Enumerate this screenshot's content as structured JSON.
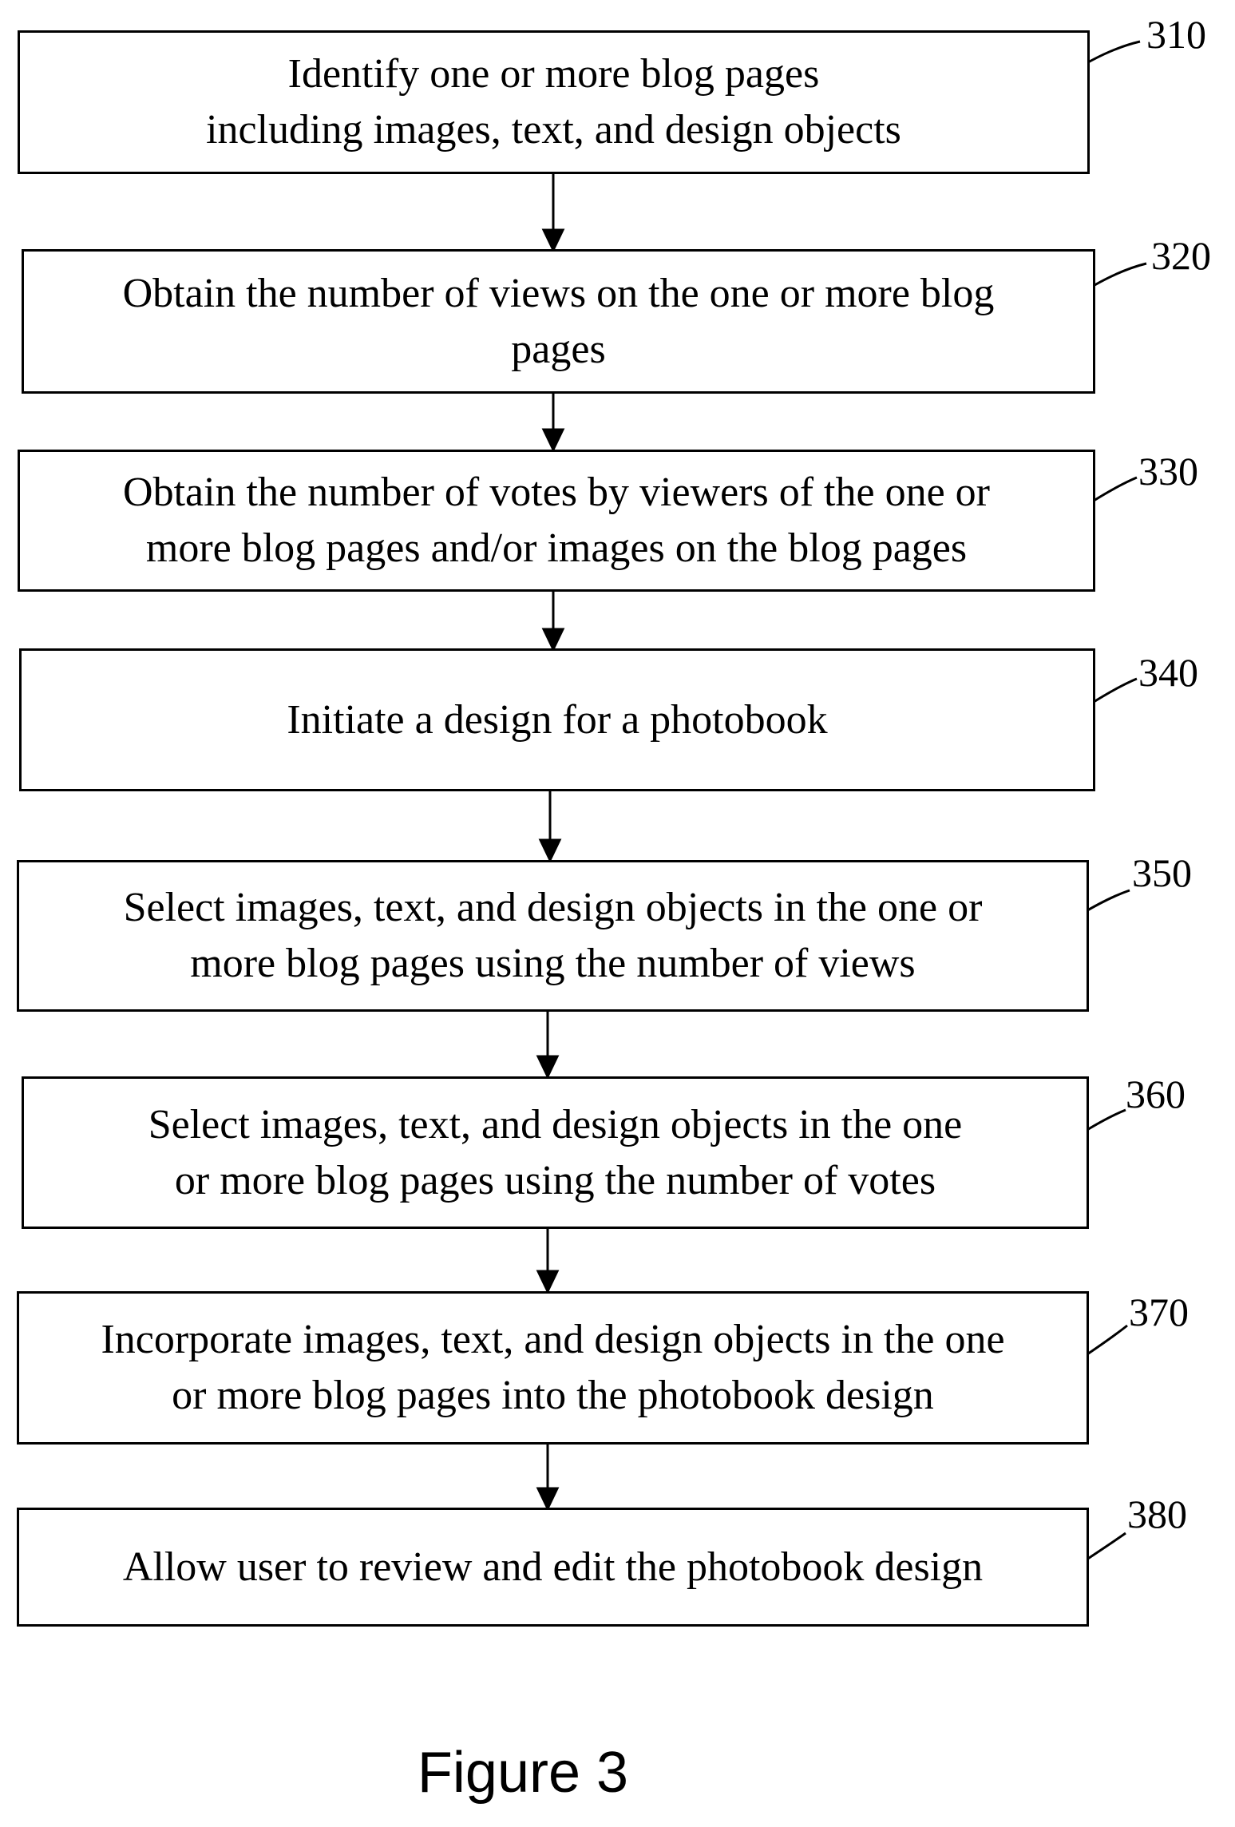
{
  "steps": [
    {
      "ref": "310",
      "text": "Identify one or more blog pages\nincluding images, text, and design objects"
    },
    {
      "ref": "320",
      "text": "Obtain the number of views on the one or more blog\npages"
    },
    {
      "ref": "330",
      "text": "Obtain the number of votes by viewers of the one or\nmore blog pages and/or images on the blog pages"
    },
    {
      "ref": "340",
      "text": "Initiate a design for a photobook"
    },
    {
      "ref": "350",
      "text": "Select images, text, and design objects in the one or\nmore blog pages using the number of views"
    },
    {
      "ref": "360",
      "text": "Select images, text, and design objects in the one\nor more blog pages using the number of votes"
    },
    {
      "ref": "370",
      "text": "Incorporate images, text, and design objects in the one\nor more blog pages into the photobook design"
    },
    {
      "ref": "380",
      "text": "Allow user to review and edit the photobook design"
    }
  ],
  "caption": "Figure 3"
}
